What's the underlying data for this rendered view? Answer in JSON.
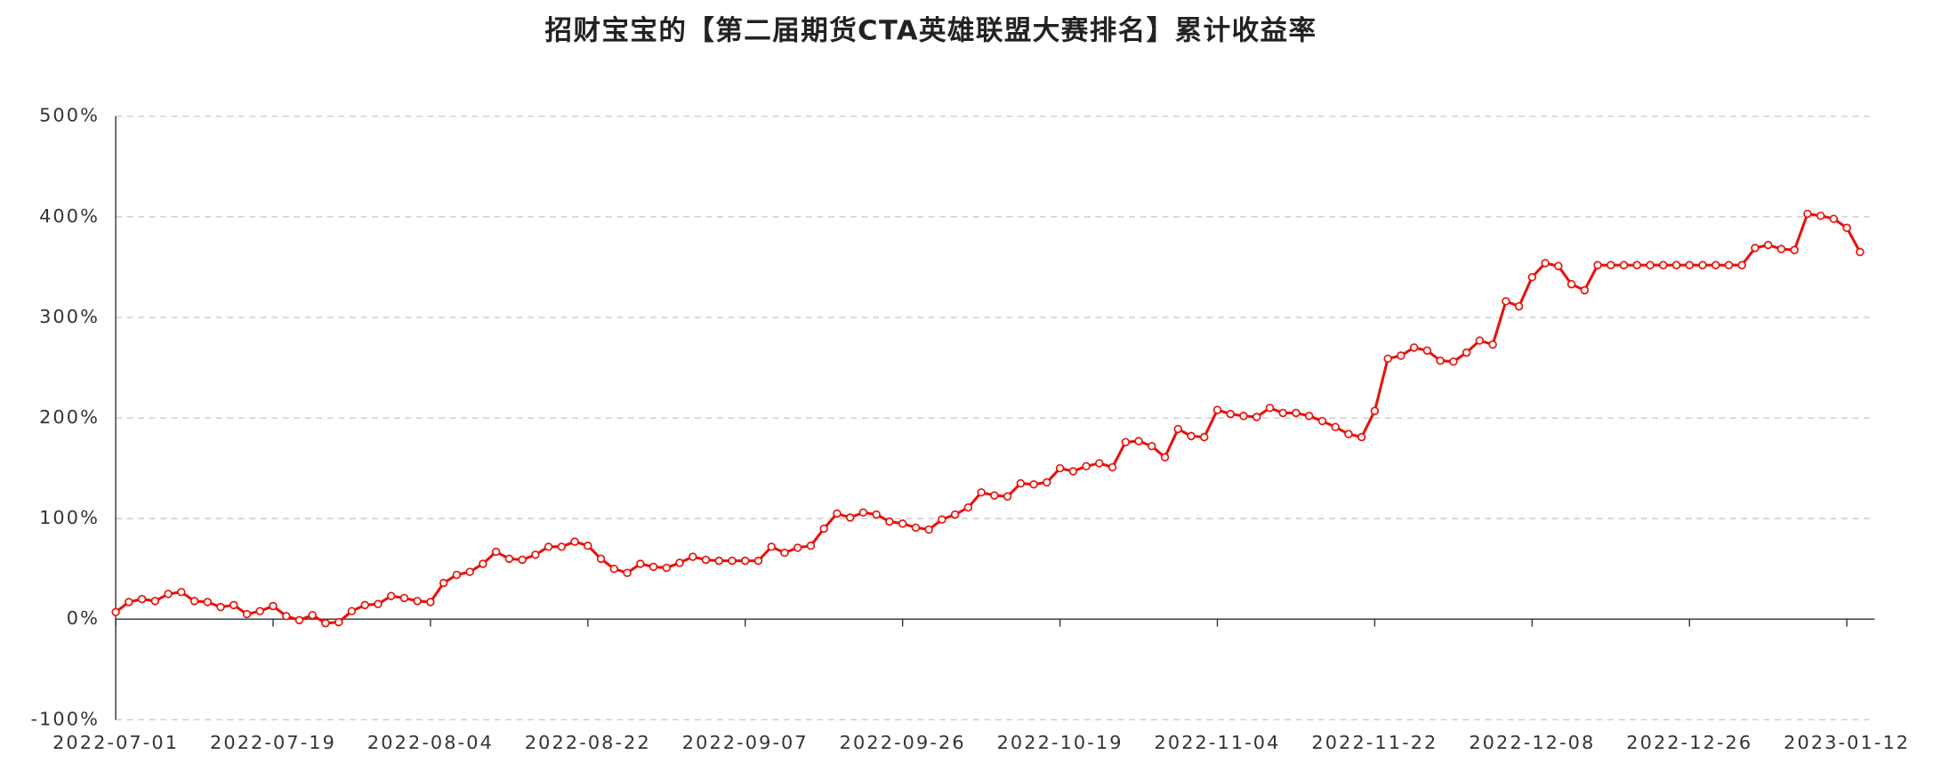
{
  "chart_data": {
    "type": "line",
    "title": "招财宝宝的【第二届期货CTA英雄联盟大赛排名】累计收益率",
    "categories": [
      "2022-07-01",
      null,
      null,
      null,
      null,
      null,
      null,
      null,
      null,
      null,
      null,
      null,
      "2022-07-19",
      null,
      null,
      null,
      null,
      null,
      null,
      null,
      null,
      null,
      null,
      null,
      "2022-08-04",
      null,
      null,
      null,
      null,
      null,
      null,
      null,
      null,
      null,
      null,
      null,
      "2022-08-22",
      null,
      null,
      null,
      null,
      null,
      null,
      null,
      null,
      null,
      null,
      null,
      "2022-09-07",
      null,
      null,
      null,
      null,
      null,
      null,
      null,
      null,
      null,
      null,
      null,
      "2022-09-26",
      null,
      null,
      null,
      null,
      null,
      null,
      null,
      null,
      null,
      null,
      null,
      "2022-10-19",
      null,
      null,
      null,
      null,
      null,
      null,
      null,
      null,
      null,
      null,
      null,
      "2022-11-04",
      null,
      null,
      null,
      null,
      null,
      null,
      null,
      null,
      null,
      null,
      null,
      "2022-11-22",
      null,
      null,
      null,
      null,
      null,
      null,
      null,
      null,
      null,
      null,
      null,
      "2022-12-08",
      null,
      null,
      null,
      null,
      null,
      null,
      null,
      null,
      null,
      null,
      null,
      "2022-12-26",
      null,
      null,
      null,
      null,
      null,
      null,
      null,
      null,
      null,
      null,
      null,
      "2023-01-12",
      null
    ],
    "series": [
      {
        "color": "#e8120c",
        "values": [
          7,
          17,
          20,
          18,
          25,
          27,
          18,
          17,
          12,
          14,
          5,
          8,
          13,
          3,
          -1,
          4,
          -4,
          -3,
          8,
          14,
          15,
          23,
          21,
          18,
          17,
          36,
          44,
          47,
          55,
          67,
          60,
          59,
          64,
          72,
          72,
          77,
          73,
          60,
          50,
          46,
          55,
          52,
          51,
          56,
          62,
          59,
          58,
          58,
          58,
          58,
          72,
          66,
          71,
          73,
          90,
          105,
          101,
          106,
          104,
          97,
          95,
          91,
          89,
          99,
          104,
          111,
          126,
          123,
          122,
          135,
          134,
          136,
          150,
          147,
          152,
          155,
          151,
          176,
          177,
          172,
          161,
          189,
          182,
          181,
          208,
          204,
          202,
          201,
          210,
          205,
          205,
          202,
          197,
          191,
          184,
          181,
          207,
          259,
          262,
          270,
          267,
          257,
          256,
          265,
          277,
          273,
          316,
          311,
          340,
          354,
          351,
          333,
          327,
          352,
          352,
          352,
          352,
          352,
          352,
          352,
          352,
          352,
          352,
          352,
          352,
          369,
          372,
          368,
          367,
          403,
          401,
          398,
          389,
          365
        ]
      }
    ],
    "ylim": [
      -100,
      500
    ],
    "yticks": [
      {
        "value": -100,
        "label": "-100%"
      },
      {
        "value": 0,
        "label": "0%"
      },
      {
        "value": 100,
        "label": "100%"
      },
      {
        "value": 200,
        "label": "200%"
      },
      {
        "value": 300,
        "label": "300%"
      },
      {
        "value": 400,
        "label": "400%"
      },
      {
        "value": 500,
        "label": "500%"
      }
    ],
    "grid": true
  }
}
